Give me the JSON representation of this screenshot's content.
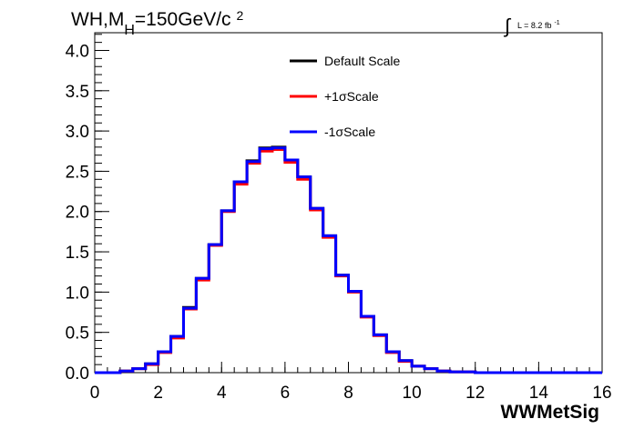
{
  "chart_data": {
    "type": "line",
    "title": {
      "main": "WH,M",
      "sub": "H",
      "rest": "=150GeV/c",
      "sup": "2"
    },
    "lumi": {
      "integral": "∫",
      "text": "L = 8.2 fb",
      "sup": "-1"
    },
    "xlabel": "WWMetSig",
    "xlim": [
      0,
      16
    ],
    "ylim": [
      0,
      4.22
    ],
    "x_ticks": [
      "0",
      "2",
      "4",
      "6",
      "8",
      "10",
      "12",
      "14",
      "16"
    ],
    "y_ticks": [
      "0.0",
      "0.5",
      "1.0",
      "1.5",
      "2.0",
      "2.5",
      "3.0",
      "3.5",
      "4.0"
    ],
    "bin_edges": [
      0,
      0.4,
      0.8,
      1.2,
      1.6,
      2.0,
      2.4,
      2.8,
      3.2,
      3.6,
      4.0,
      4.4,
      4.8,
      5.2,
      5.6,
      6.0,
      6.4,
      6.8,
      7.2,
      7.6,
      8.0,
      8.4,
      8.8,
      9.2,
      9.6,
      10.0,
      10.4,
      10.8,
      11.2,
      11.6,
      12.0,
      12.4,
      12.8,
      13.2,
      13.6,
      14.0,
      14.4,
      14.8,
      15.2,
      15.6,
      16.0
    ],
    "series": [
      {
        "name": "Default Scale",
        "color": "#000000",
        "values": [
          0,
          0,
          0.02,
          0.05,
          0.11,
          0.26,
          0.45,
          0.81,
          1.17,
          1.59,
          2.01,
          2.37,
          2.63,
          2.79,
          2.8,
          2.64,
          2.43,
          2.04,
          1.7,
          1.21,
          1.01,
          0.7,
          0.47,
          0.26,
          0.15,
          0.08,
          0.05,
          0.02,
          0.01,
          0.01,
          0,
          0,
          0,
          0,
          0,
          0,
          0,
          0,
          0,
          0
        ]
      },
      {
        "name": "+1σScale",
        "color": "#ff0000",
        "values": [
          0,
          0,
          0.02,
          0.05,
          0.1,
          0.25,
          0.43,
          0.79,
          1.15,
          1.58,
          2.0,
          2.34,
          2.6,
          2.75,
          2.77,
          2.61,
          2.4,
          2.02,
          1.68,
          1.2,
          1.0,
          0.69,
          0.46,
          0.25,
          0.14,
          0.08,
          0.05,
          0.02,
          0.01,
          0.01,
          0,
          0,
          0,
          0,
          0,
          0,
          0,
          0,
          0,
          0
        ]
      },
      {
        "name": "-1σScale",
        "color": "#0000ff",
        "values": [
          0,
          0,
          0.02,
          0.05,
          0.11,
          0.26,
          0.45,
          0.8,
          1.17,
          1.59,
          2.01,
          2.37,
          2.62,
          2.78,
          2.79,
          2.64,
          2.43,
          2.04,
          1.7,
          1.21,
          1.01,
          0.7,
          0.47,
          0.26,
          0.15,
          0.08,
          0.05,
          0.02,
          0.01,
          0.01,
          0,
          0,
          0,
          0,
          0,
          0,
          0,
          0,
          0,
          0
        ]
      }
    ],
    "legend_position": "top-center",
    "grid": false
  }
}
